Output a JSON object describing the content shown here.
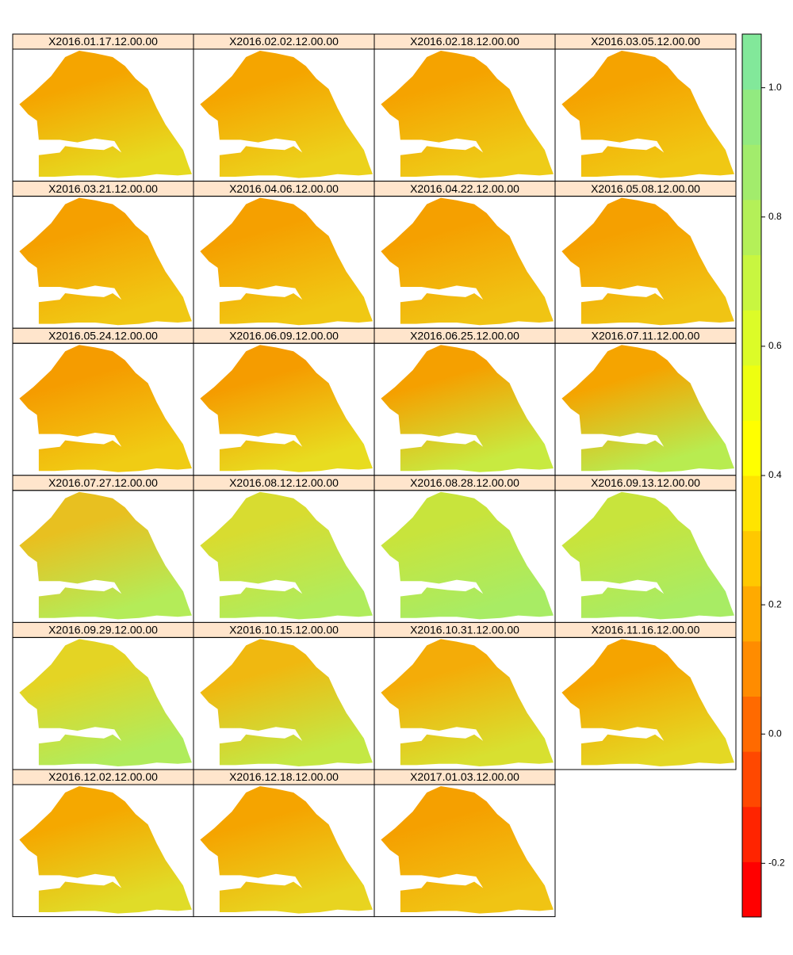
{
  "chart_data": {
    "type": "levelplot",
    "panels": [
      {
        "title": "X2016.01.17.12.00.00",
        "colors": [
          "#F5A500",
          "#E6DA20"
        ]
      },
      {
        "title": "X2016.02.02.12.00.00",
        "colors": [
          "#F5A500",
          "#ECD21C"
        ]
      },
      {
        "title": "X2016.02.18.12.00.00",
        "colors": [
          "#F5A300",
          "#EECC18"
        ]
      },
      {
        "title": "X2016.03.05.12.00.00",
        "colors": [
          "#F5A300",
          "#F0C814"
        ]
      },
      {
        "title": "X2016.03.21.12.00.00",
        "colors": [
          "#F5A000",
          "#F0C814"
        ]
      },
      {
        "title": "X2016.04.06.12.00.00",
        "colors": [
          "#F5A000",
          "#F0C814"
        ]
      },
      {
        "title": "X2016.04.22.12.00.00",
        "colors": [
          "#F5A000",
          "#F0C414"
        ]
      },
      {
        "title": "X2016.05.08.12.00.00",
        "colors": [
          "#F5A000",
          "#F0C414"
        ]
      },
      {
        "title": "X2016.05.24.12.00.00",
        "colors": [
          "#F59C00",
          "#F0CC14"
        ]
      },
      {
        "title": "X2016.06.09.12.00.00",
        "colors": [
          "#F59C00",
          "#E8DC20"
        ]
      },
      {
        "title": "X2016.06.25.12.00.00",
        "colors": [
          "#F5A000",
          "#C8EA40"
        ]
      },
      {
        "title": "X2016.07.11.12.00.00",
        "colors": [
          "#F5A400",
          "#B8EC50"
        ]
      },
      {
        "title": "X2016.07.27.12.00.00",
        "colors": [
          "#E8C020",
          "#B4EC58"
        ]
      },
      {
        "title": "X2016.08.12.12.00.00",
        "colors": [
          "#D8DC30",
          "#B0EC5C"
        ]
      },
      {
        "title": "X2016.08.28.12.00.00",
        "colors": [
          "#C8E43C",
          "#A8EC64"
        ]
      },
      {
        "title": "X2016.09.13.12.00.00",
        "colors": [
          "#C8E43C",
          "#A8EC64"
        ]
      },
      {
        "title": "X2016.09.29.12.00.00",
        "colors": [
          "#E4D424",
          "#B0EC5C"
        ]
      },
      {
        "title": "X2016.10.15.12.00.00",
        "colors": [
          "#F0B810",
          "#C4E844"
        ]
      },
      {
        "title": "X2016.10.31.12.00.00",
        "colors": [
          "#F4AC08",
          "#D8E030"
        ]
      },
      {
        "title": "X2016.11.16.12.00.00",
        "colors": [
          "#F5A400",
          "#E4D824"
        ]
      },
      {
        "title": "X2016.12.02.12.00.00",
        "colors": [
          "#F5A800",
          "#E0DC28"
        ]
      },
      {
        "title": "X2016.12.18.12.00.00",
        "colors": [
          "#F5A400",
          "#E8D420"
        ]
      },
      {
        "title": "X2017.01.03.12.00.00",
        "colors": [
          "#F5A000",
          "#F0C414"
        ]
      }
    ],
    "colorbar": {
      "lim": [
        -0.283,
        1.083
      ],
      "ticks": [
        -0.2,
        {
          "value": 0,
          "label": "0.0"
        },
        0.2,
        0.4,
        0.6,
        0.8,
        {
          "value": 1,
          "label": "1.0"
        }
      ],
      "colors": [
        "#FF0000",
        "#FF2400",
        "#FF4800",
        "#FF6A00",
        "#FF8C00",
        "#FFAA00",
        "#FFC800",
        "#FFE400",
        "#FFFF00",
        "#EEFF10",
        "#DCFC28",
        "#C8F640",
        "#B4F058",
        "#A2EC6C",
        "#92EA80",
        "#82E89A"
      ]
    }
  }
}
